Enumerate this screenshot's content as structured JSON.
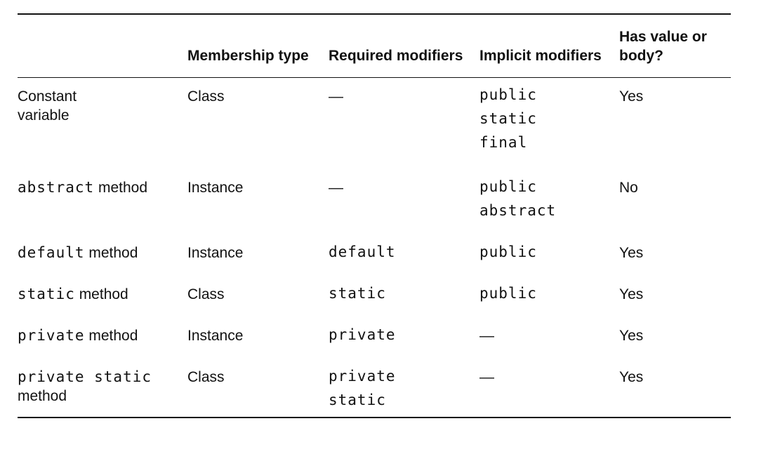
{
  "table": {
    "headers": [
      "",
      "Membership type",
      "Required modifiers",
      "Implicit modifiers",
      "Has value or body?"
    ],
    "rows": [
      {
        "name_code": "",
        "name_text": "Constant variable",
        "membership": "Class",
        "required": [
          "—"
        ],
        "implicit": [
          "public",
          "static",
          "final"
        ],
        "has_value": "Yes"
      },
      {
        "name_code": "abstract",
        "name_text": " method",
        "membership": "Instance",
        "required": [
          "—"
        ],
        "implicit": [
          "public",
          "abstract"
        ],
        "has_value": "No"
      },
      {
        "name_code": "default",
        "name_text": " method",
        "membership": "Instance",
        "required": [
          "default"
        ],
        "implicit": [
          "public"
        ],
        "has_value": "Yes"
      },
      {
        "name_code": "static",
        "name_text": " method",
        "membership": "Class",
        "required": [
          "static"
        ],
        "implicit": [
          "public"
        ],
        "has_value": "Yes"
      },
      {
        "name_code": "private",
        "name_text": " method",
        "membership": "Instance",
        "required": [
          "private"
        ],
        "implicit": [
          "—"
        ],
        "has_value": "Yes"
      },
      {
        "name_code": "private static",
        "name_text": "method",
        "membership": "Class",
        "required": [
          "private",
          "static"
        ],
        "implicit": [
          "—"
        ],
        "has_value": "Yes"
      }
    ]
  }
}
